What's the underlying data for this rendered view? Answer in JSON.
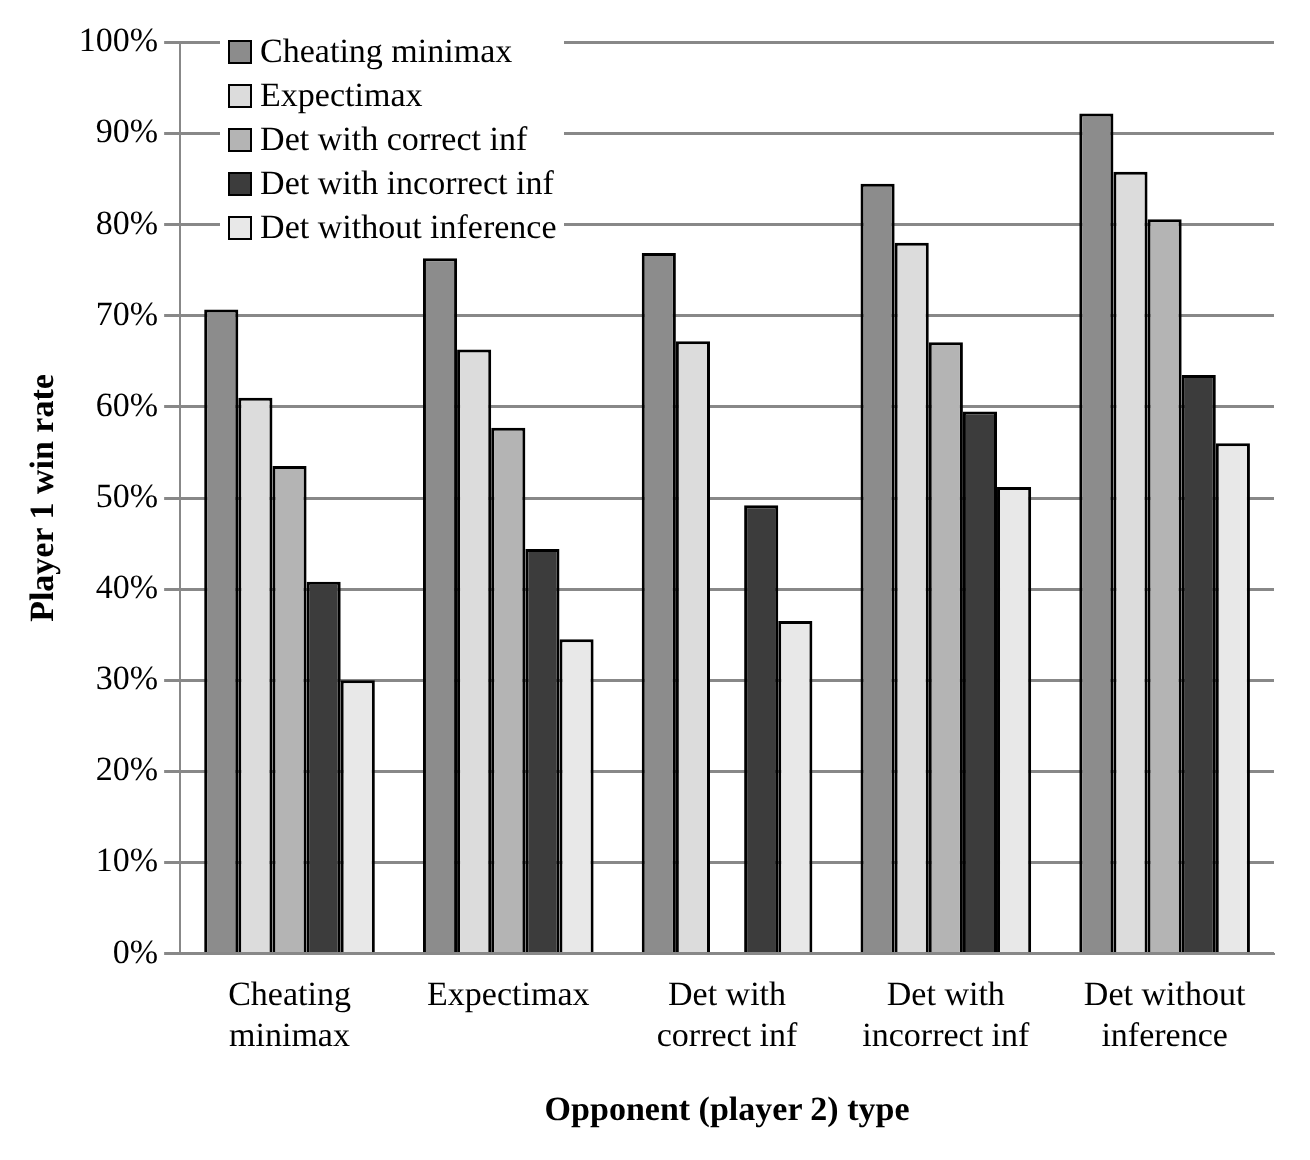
{
  "chart_data": {
    "type": "bar",
    "xlabel": "Opponent (player 2) type",
    "ylabel": "Player 1 win rate",
    "categories": [
      "Cheating minimax",
      "Expectimax",
      "Det with correct inf",
      "Det with incorrect inf",
      "Det without inference"
    ],
    "series": [
      {
        "name": "Cheating minimax",
        "color": "#8c8c8c",
        "values": [
          70.7,
          76.3,
          76.9,
          84.5,
          92.2
        ]
      },
      {
        "name": "Expectimax",
        "color": "#dcdcdc",
        "values": [
          61.0,
          66.3,
          67.2,
          78.0,
          85.8
        ]
      },
      {
        "name": "Det with correct inf",
        "color": "#b4b4b4",
        "values": [
          53.5,
          57.7,
          null,
          67.1,
          80.6
        ]
      },
      {
        "name": "Det with incorrect inf",
        "color": "#3c3c3c",
        "values": [
          40.8,
          44.4,
          49.2,
          59.5,
          63.5
        ]
      },
      {
        "name": "Det without inference",
        "color": "#e8e8e8",
        "values": [
          30.0,
          34.5,
          36.5,
          51.2,
          56.0
        ]
      }
    ],
    "ylim": [
      0,
      100
    ],
    "yticks": [
      {
        "value": 0,
        "label": "0%"
      },
      {
        "value": 10,
        "label": "10%"
      },
      {
        "value": 20,
        "label": "20%"
      },
      {
        "value": 30,
        "label": "30%"
      },
      {
        "value": 40,
        "label": "40%"
      },
      {
        "value": 50,
        "label": "50%"
      },
      {
        "value": 60,
        "label": "60%"
      },
      {
        "value": 70,
        "label": "70%"
      },
      {
        "value": 80,
        "label": "80%"
      },
      {
        "value": 90,
        "label": "90%"
      },
      {
        "value": 100,
        "label": "100%"
      }
    ],
    "grid": "y",
    "legend": "top left"
  }
}
